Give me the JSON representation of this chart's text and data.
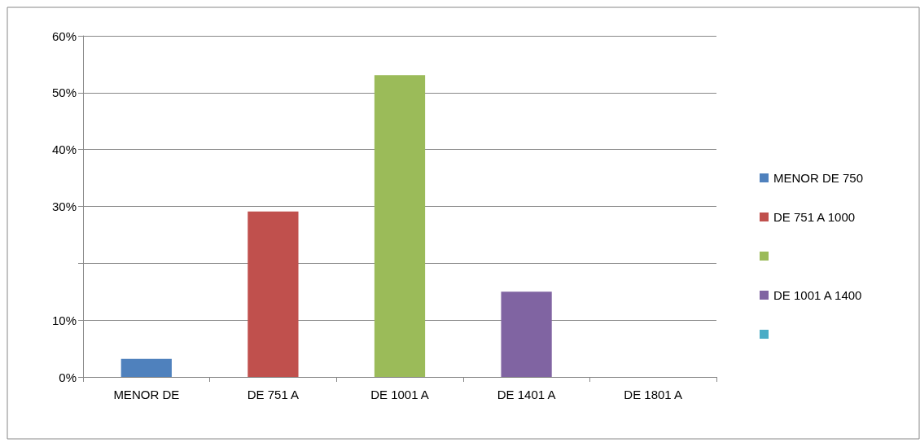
{
  "chart_data": {
    "type": "bar",
    "categories": [
      "MENOR DE",
      "DE 751 A",
      "DE 1001 A",
      "DE 1401 A",
      "DE 1801 A"
    ],
    "series": [
      {
        "name": "MENOR DE 750",
        "color": "#4f81bd",
        "values": [
          3.2,
          null,
          null,
          null,
          null
        ]
      },
      {
        "name": "DE 751 A 1000",
        "color": "#c0504d",
        "values": [
          null,
          29.1,
          null,
          null,
          null
        ]
      },
      {
        "color": "#9bbb59",
        "values": [
          null,
          null,
          53.1,
          null,
          null
        ]
      },
      {
        "name": "DE 1001 A 1400",
        "color": "#8064a2",
        "values": [
          null,
          null,
          null,
          15.0,
          null
        ]
      },
      {
        "color": "#4bacc6",
        "values": [
          null,
          null,
          null,
          null,
          0
        ]
      }
    ],
    "stacked": true,
    "ylim": [
      0,
      60
    ],
    "yticks": [
      {
        "value": 0,
        "label": "0%"
      },
      {
        "value": 10,
        "label": "10%"
      },
      {
        "value": 20,
        "label": null
      },
      {
        "value": 30,
        "label": "30%"
      },
      {
        "value": 40,
        "label": "40%"
      },
      {
        "value": 50,
        "label": "50%"
      },
      {
        "value": 60,
        "label": "60%"
      }
    ],
    "grid": "y",
    "legend": "right"
  }
}
